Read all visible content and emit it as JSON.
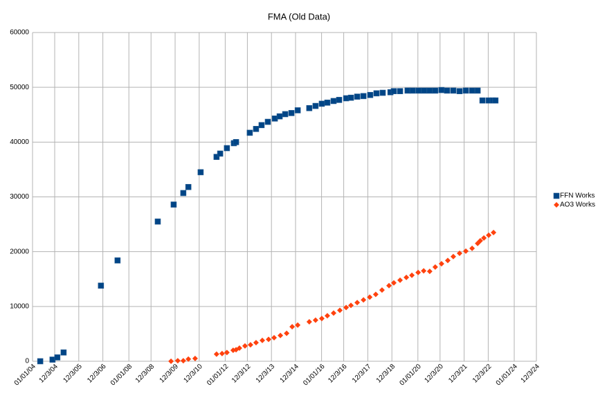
{
  "chart_data": {
    "type": "scatter",
    "title": "FMA (Old Data)",
    "xlim": [
      2004.0,
      2024.92
    ],
    "ylim": [
      0,
      60000
    ],
    "xticks": [
      {
        "value": 2004.0,
        "label": "01/01/04"
      },
      {
        "value": 2004.92,
        "label": "12/3/04"
      },
      {
        "value": 2005.92,
        "label": "12/3/05"
      },
      {
        "value": 2006.92,
        "label": "12/3/06"
      },
      {
        "value": 2008.0,
        "label": "01/01/08"
      },
      {
        "value": 2008.92,
        "label": "12/3/08"
      },
      {
        "value": 2009.92,
        "label": "12/3/09"
      },
      {
        "value": 2010.92,
        "label": "12/3/10"
      },
      {
        "value": 2012.0,
        "label": "01/01/12"
      },
      {
        "value": 2012.92,
        "label": "12/3/12"
      },
      {
        "value": 2013.92,
        "label": "12/3/13"
      },
      {
        "value": 2014.92,
        "label": "12/3/14"
      },
      {
        "value": 2016.0,
        "label": "01/01/16"
      },
      {
        "value": 2016.92,
        "label": "12/3/16"
      },
      {
        "value": 2017.92,
        "label": "12/3/17"
      },
      {
        "value": 2018.92,
        "label": "12/3/18"
      },
      {
        "value": 2020.0,
        "label": "01/01/20"
      },
      {
        "value": 2020.92,
        "label": "12/3/20"
      },
      {
        "value": 2021.92,
        "label": "12/3/21"
      },
      {
        "value": 2022.92,
        "label": "12/3/22"
      },
      {
        "value": 2024.0,
        "label": "01/01/24"
      },
      {
        "value": 2024.92,
        "label": "12/3/24"
      }
    ],
    "yticks": [
      0,
      10000,
      20000,
      30000,
      40000,
      50000,
      60000
    ],
    "grid": true,
    "legend": "right",
    "series": [
      {
        "name": "FFN Works",
        "color": "#004586",
        "marker": "square",
        "x": [
          2004.32,
          2004.83,
          2005.03,
          2005.29,
          2006.84,
          2007.53,
          2009.2,
          2009.86,
          2010.26,
          2010.47,
          2010.98,
          2011.64,
          2011.79,
          2012.07,
          2012.36,
          2012.45,
          2013.02,
          2013.28,
          2013.51,
          2013.77,
          2014.06,
          2014.26,
          2014.49,
          2014.75,
          2015.01,
          2015.49,
          2015.75,
          2016.01,
          2016.24,
          2016.5,
          2016.73,
          2017.02,
          2017.22,
          2017.48,
          2017.74,
          2018.02,
          2018.28,
          2018.54,
          2018.86,
          2019.0,
          2019.26,
          2019.57,
          2019.78,
          2020.03,
          2020.26,
          2020.49,
          2020.72,
          2020.98,
          2021.21,
          2021.47,
          2021.73,
          2021.99,
          2022.25,
          2022.48,
          2022.68,
          2022.94,
          2023.11,
          2023.22
        ],
        "values": [
          0,
          300,
          700,
          1600,
          13800,
          18400,
          25500,
          28600,
          30700,
          31800,
          34500,
          37300,
          37900,
          38900,
          39800,
          40000,
          41700,
          42400,
          43100,
          43700,
          44300,
          44700,
          45100,
          45300,
          45800,
          46200,
          46600,
          47000,
          47200,
          47500,
          47700,
          48000,
          48100,
          48300,
          48400,
          48600,
          48900,
          49000,
          49100,
          49300,
          49300,
          49400,
          49400,
          49400,
          49400,
          49400,
          49400,
          49500,
          49400,
          49400,
          49300,
          49400,
          49400,
          49400,
          47600,
          47600,
          47600,
          47600
        ]
      },
      {
        "name": "AO3 Works",
        "color": "#ff420e",
        "marker": "diamond",
        "x": [
          2009.75,
          2010.03,
          2010.26,
          2010.47,
          2010.75,
          2011.64,
          2011.87,
          2012.07,
          2012.33,
          2012.45,
          2012.59,
          2012.82,
          2013.05,
          2013.28,
          2013.54,
          2013.8,
          2014.03,
          2014.29,
          2014.55,
          2014.78,
          2015.01,
          2015.49,
          2015.75,
          2016.01,
          2016.24,
          2016.5,
          2016.76,
          2017.02,
          2017.22,
          2017.48,
          2017.74,
          2018.0,
          2018.25,
          2018.51,
          2018.8,
          2019.0,
          2019.26,
          2019.52,
          2019.75,
          2020.01,
          2020.24,
          2020.49,
          2020.72,
          2020.98,
          2021.24,
          2021.47,
          2021.73,
          2021.99,
          2022.25,
          2022.48,
          2022.59,
          2022.74,
          2022.94,
          2023.14
        ],
        "values": [
          0,
          100,
          100,
          400,
          500,
          1300,
          1400,
          1600,
          2000,
          2100,
          2400,
          2800,
          3000,
          3400,
          3800,
          4000,
          4300,
          4700,
          5100,
          6300,
          6600,
          7200,
          7500,
          7800,
          8300,
          8800,
          9300,
          9800,
          10200,
          10700,
          11200,
          11700,
          12200,
          13000,
          13800,
          14300,
          14800,
          15300,
          15700,
          16200,
          16500,
          16400,
          17200,
          17800,
          18400,
          19100,
          19700,
          20100,
          20600,
          21500,
          22000,
          22500,
          23000,
          23500
        ]
      }
    ]
  }
}
